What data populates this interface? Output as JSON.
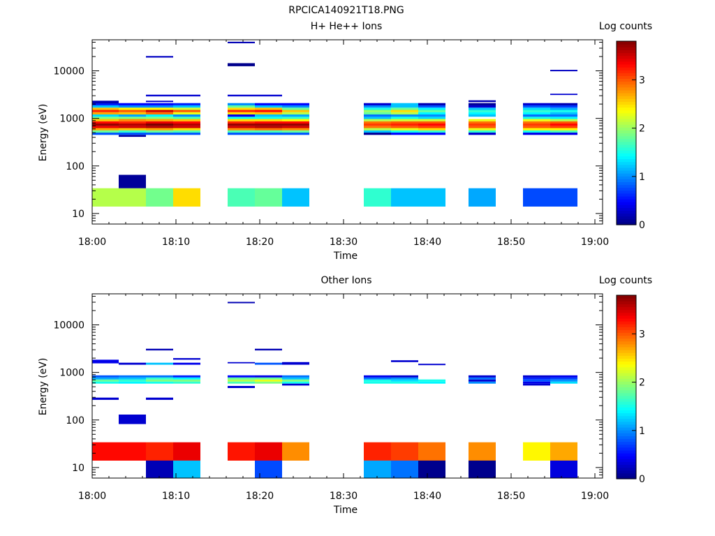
{
  "figure_title": "RPCICA140921T18.PNG",
  "colorbar": {
    "label": "Log counts",
    "range": [
      0,
      3.8
    ],
    "ticks": [
      "0",
      "1",
      "2",
      "3"
    ],
    "colormap": "jet"
  },
  "chart_data": [
    {
      "type": "heatmap",
      "title": "H+ He++ Ions",
      "xlabel": "Time",
      "ylabel": "Energy (eV)",
      "y_scale": "log",
      "xlim": [
        "18:00",
        "19:00"
      ],
      "ylim": [
        6,
        45000
      ],
      "x_ticks": [
        "18:00",
        "18:10",
        "18:20",
        "18:30",
        "18:40",
        "18:50",
        "19:00"
      ],
      "y_ticks": [
        "10",
        "100",
        "1000",
        "10000"
      ],
      "cells": [
        {
          "t0": "18:00:00",
          "t1": "18:03:10",
          "e0": 14,
          "e1": 34,
          "v": 2.1
        },
        {
          "t0": "18:03:10",
          "t1": "18:06:25",
          "e0": 14,
          "e1": 34,
          "v": 2.1
        },
        {
          "t0": "18:06:25",
          "t1": "18:09:40",
          "e0": 14,
          "e1": 34,
          "v": 1.85
        },
        {
          "t0": "18:09:40",
          "t1": "18:12:55",
          "e0": 14,
          "e1": 34,
          "v": 2.5
        },
        {
          "t0": "18:16:10",
          "t1": "18:19:25",
          "e0": 14,
          "e1": 34,
          "v": 1.7
        },
        {
          "t0": "18:19:25",
          "t1": "18:22:40",
          "e0": 14,
          "e1": 34,
          "v": 1.8
        },
        {
          "t0": "18:22:40",
          "t1": "18:25:55",
          "e0": 14,
          "e1": 34,
          "v": 1.2
        },
        {
          "t0": "18:32:25",
          "t1": "18:35:40",
          "e0": 14,
          "e1": 34,
          "v": 1.6
        },
        {
          "t0": "18:35:40",
          "t1": "18:38:55",
          "e0": 14,
          "e1": 34,
          "v": 1.2
        },
        {
          "t0": "18:38:55",
          "t1": "18:42:10",
          "e0": 14,
          "e1": 34,
          "v": 1.2
        },
        {
          "t0": "18:44:55",
          "t1": "18:48:10",
          "e0": 14,
          "e1": 34,
          "v": 1.1
        },
        {
          "t0": "18:51:25",
          "t1": "18:54:40",
          "e0": 14,
          "e1": 34,
          "v": 0.75
        },
        {
          "t0": "18:54:40",
          "t1": "18:57:55",
          "e0": 14,
          "e1": 34,
          "v": 0.75
        },
        {
          "t0": "18:03:10",
          "t1": "18:06:25",
          "e0": 34,
          "e1": 65,
          "v": 0.1
        },
        {
          "t0": "18:03:10",
          "t1": "18:06:25",
          "e0": 410,
          "e1": 450,
          "v": 0.15
        },
        {
          "t0": "18:06:25",
          "t1": "18:09:40",
          "e0": 19000,
          "e1": 20500,
          "v": 0.25
        },
        {
          "t0": "18:16:10",
          "t1": "18:19:25",
          "e0": 38000,
          "e1": 41000,
          "v": 0.2
        },
        {
          "t0": "18:16:10",
          "t1": "18:19:25",
          "e0": 12500,
          "e1": 14500,
          "v": 0.05
        },
        {
          "t0": "18:06:25",
          "t1": "18:09:40",
          "e0": 2900,
          "e1": 3150,
          "v": 0.3
        },
        {
          "t0": "18:09:40",
          "t1": "18:12:55",
          "e0": 2900,
          "e1": 3150,
          "v": 0.3
        },
        {
          "t0": "18:16:10",
          "t1": "18:19:25",
          "e0": 2900,
          "e1": 3150,
          "v": 0.3
        },
        {
          "t0": "18:19:25",
          "t1": "18:22:40",
          "e0": 2900,
          "e1": 3150,
          "v": 0.3
        },
        {
          "t0": "18:06:25",
          "t1": "18:09:40",
          "e0": 2200,
          "e1": 2350,
          "v": 0.3
        },
        {
          "t0": "18:44:55",
          "t1": "18:48:10",
          "e0": 2200,
          "e1": 2400,
          "v": 0.2
        },
        {
          "t0": "18:54:40",
          "t1": "18:57:55",
          "e0": 9800,
          "e1": 10500,
          "v": 0.25
        },
        {
          "t0": "18:54:40",
          "t1": "18:57:55",
          "e0": 3100,
          "e1": 3300,
          "v": 0.3
        },
        {
          "t0": "18:00:00",
          "t1": "18:03:10",
          "e0": 2050,
          "e1": 2350,
          "v": 0.2
        }
      ],
      "spectra_band": {
        "e_range": [
          450,
          2100
        ],
        "columns": [
          {
            "t0": "18:00:00",
            "t1": "18:03:10",
            "levels": [
              0.8,
              1.8,
              2.7,
              3.4,
              3.7,
              3.3,
              2.6,
              1.9,
              1.3,
              2.7,
              3.2,
              2.6,
              1.2,
              0.6
            ]
          },
          {
            "t0": "18:03:10",
            "t1": "18:06:25",
            "levels": [
              0.8,
              1.6,
              2.6,
              3.5,
              3.6,
              3.2,
              2.8,
              1.9,
              1.1,
              2.6,
              3.0,
              2.4,
              1.0,
              0.5
            ]
          },
          {
            "t0": "18:06:25",
            "t1": "18:09:40",
            "levels": [
              0.8,
              1.8,
              2.7,
              3.6,
              3.8,
              3.4,
              2.7,
              1.9,
              1.4,
              2.9,
              3.5,
              2.4,
              1.0,
              0.5
            ]
          },
          {
            "t0": "18:09:40",
            "t1": "18:12:55",
            "levels": [
              0.8,
              1.7,
              2.5,
              3.5,
              3.6,
              3.3,
              2.6,
              1.7,
              1.0,
              2.3,
              3.0,
              2.2,
              1.2,
              0.6
            ]
          },
          {
            "t0": "18:16:10",
            "t1": "18:19:25",
            "levels": [
              0.8,
              1.7,
              2.8,
              3.5,
              3.7,
              3.2,
              2.5,
              1.5,
              0.4,
              2.5,
              3.2,
              2.5,
              1.8,
              1.0
            ]
          },
          {
            "t0": "18:19:25",
            "t1": "18:22:40",
            "levels": [
              0.8,
              1.7,
              2.9,
              3.6,
              3.7,
              3.3,
              2.5,
              1.5,
              1.2,
              2.6,
              3.3,
              2.6,
              1.2,
              0.5
            ]
          },
          {
            "t0": "18:22:40",
            "t1": "18:25:55",
            "levels": [
              0.8,
              1.8,
              2.8,
              3.5,
              3.7,
              3.3,
              2.4,
              1.6,
              1.1,
              2.1,
              2.6,
              1.8,
              1.0,
              0.5
            ]
          },
          {
            "t0": "18:32:25",
            "t1": "18:35:40",
            "levels": [
              0.1,
              1.2,
              2.1,
              2.9,
              3.1,
              2.9,
              2.1,
              1.2,
              0.9,
              1.8,
              2.0,
              1.5,
              1.0,
              0.3
            ]
          },
          {
            "t0": "18:35:40",
            "t1": "18:38:55",
            "levels": [
              0.5,
              1.5,
              2.3,
              3.0,
              3.2,
              3.0,
              2.2,
              1.5,
              1.0,
              2.1,
              2.5,
              1.8,
              1.2,
              1.2
            ]
          },
          {
            "t0": "18:38:55",
            "t1": "18:42:10",
            "levels": [
              0.5,
              1.6,
              2.5,
              3.1,
              3.3,
              3.0,
              2.2,
              1.3,
              1.0,
              1.4,
              1.8,
              1.4,
              0.8,
              0.2
            ]
          },
          {
            "t0": "18:44:55",
            "t1": "18:48:10",
            "levels": [
              0.3,
              1.6,
              2.3,
              3.0,
              3.1,
              2.9,
              2.3,
              null,
              1.2,
              1.4,
              1.6,
              1.2,
              0.3,
              0.1
            ]
          },
          {
            "t0": "18:51:25",
            "t1": "18:54:40",
            "levels": [
              0.4,
              1.5,
              2.4,
              3.0,
              3.1,
              2.9,
              2.3,
              1.5,
              0.9,
              1.4,
              1.6,
              1.3,
              0.8,
              0.3
            ]
          },
          {
            "t0": "18:54:40",
            "t1": "18:57:55",
            "levels": [
              0.4,
              1.7,
              2.4,
              3.1,
              3.3,
              3.0,
              2.1,
              1.4,
              0.9,
              1.2,
              1.5,
              1.1,
              0.7,
              0.2
            ]
          }
        ]
      }
    },
    {
      "type": "heatmap",
      "title": "Other Ions",
      "xlabel": "Time",
      "ylabel": "Energy (eV)",
      "y_scale": "log",
      "xlim": [
        "18:00",
        "19:00"
      ],
      "ylim": [
        6,
        45000
      ],
      "x_ticks": [
        "18:00",
        "18:10",
        "18:20",
        "18:30",
        "18:40",
        "18:50",
        "19:00"
      ],
      "y_ticks": [
        "10",
        "100",
        "1000",
        "10000"
      ],
      "cells": [
        {
          "t0": "18:00:00",
          "t1": "18:03:10",
          "e0": 14,
          "e1": 34,
          "v": 3.3
        },
        {
          "t0": "18:03:10",
          "t1": "18:06:25",
          "e0": 14,
          "e1": 34,
          "v": 3.3
        },
        {
          "t0": "18:06:25",
          "t1": "18:09:40",
          "e0": 14,
          "e1": 34,
          "v": 3.2
        },
        {
          "t0": "18:09:40",
          "t1": "18:12:55",
          "e0": 14,
          "e1": 34,
          "v": 3.4
        },
        {
          "t0": "18:16:10",
          "t1": "18:19:25",
          "e0": 14,
          "e1": 34,
          "v": 3.25
        },
        {
          "t0": "18:19:25",
          "t1": "18:22:40",
          "e0": 14,
          "e1": 34,
          "v": 3.4
        },
        {
          "t0": "18:22:40",
          "t1": "18:25:55",
          "e0": 14,
          "e1": 34,
          "v": 2.8
        },
        {
          "t0": "18:32:25",
          "t1": "18:35:40",
          "e0": 14,
          "e1": 34,
          "v": 3.2
        },
        {
          "t0": "18:35:40",
          "t1": "18:38:55",
          "e0": 14,
          "e1": 34,
          "v": 3.1
        },
        {
          "t0": "18:38:55",
          "t1": "18:42:10",
          "e0": 14,
          "e1": 34,
          "v": 2.9
        },
        {
          "t0": "18:44:55",
          "t1": "18:48:10",
          "e0": 14,
          "e1": 34,
          "v": 2.8
        },
        {
          "t0": "18:51:25",
          "t1": "18:54:40",
          "e0": 14,
          "e1": 34,
          "v": 2.4
        },
        {
          "t0": "18:54:40",
          "t1": "18:57:55",
          "e0": 14,
          "e1": 34,
          "v": 2.7
        },
        {
          "t0": "18:06:25",
          "t1": "18:09:40",
          "e0": 6,
          "e1": 14,
          "v": 0.2
        },
        {
          "t0": "18:09:40",
          "t1": "18:12:55",
          "e0": 6,
          "e1": 14,
          "v": 1.2
        },
        {
          "t0": "18:19:25",
          "t1": "18:22:40",
          "e0": 6,
          "e1": 14,
          "v": 0.75
        },
        {
          "t0": "18:32:25",
          "t1": "18:35:40",
          "e0": 6,
          "e1": 14,
          "v": 1.1
        },
        {
          "t0": "18:35:40",
          "t1": "18:38:55",
          "e0": 6,
          "e1": 14,
          "v": 0.9
        },
        {
          "t0": "18:38:55",
          "t1": "18:42:10",
          "e0": 6,
          "e1": 14,
          "v": 0.05
        },
        {
          "t0": "18:44:55",
          "t1": "18:48:10",
          "e0": 6,
          "e1": 14,
          "v": 0.05
        },
        {
          "t0": "18:54:40",
          "t1": "18:57:55",
          "e0": 6,
          "e1": 14,
          "v": 0.35
        },
        {
          "t0": "18:03:10",
          "t1": "18:06:25",
          "e0": 82,
          "e1": 130,
          "v": 0.3
        },
        {
          "t0": "18:00:00",
          "t1": "18:03:10",
          "e0": 265,
          "e1": 295,
          "v": 0.3
        },
        {
          "t0": "18:06:25",
          "t1": "18:09:40",
          "e0": 265,
          "e1": 295,
          "v": 0.3
        },
        {
          "t0": "18:16:10",
          "t1": "18:19:25",
          "e0": 28500,
          "e1": 30500,
          "v": 0.2
        },
        {
          "t0": "18:06:25",
          "t1": "18:09:40",
          "e0": 2900,
          "e1": 3150,
          "v": 0.2
        },
        {
          "t0": "18:19:25",
          "t1": "18:22:40",
          "e0": 2900,
          "e1": 3150,
          "v": 0.2
        },
        {
          "t0": "18:00:00",
          "t1": "18:03:10",
          "e0": 1550,
          "e1": 1850,
          "v": 0.4
        },
        {
          "t0": "18:03:10",
          "t1": "18:06:25",
          "e0": 1450,
          "e1": 1600,
          "v": 0.3
        },
        {
          "t0": "18:06:25",
          "t1": "18:09:40",
          "e0": 1450,
          "e1": 1600,
          "v": 1.2
        },
        {
          "t0": "18:09:40",
          "t1": "18:12:55",
          "e0": 1450,
          "e1": 1600,
          "v": 0.4
        },
        {
          "t0": "18:09:40",
          "t1": "18:12:55",
          "e0": 1850,
          "e1": 2000,
          "v": 0.3
        },
        {
          "t0": "18:16:10",
          "t1": "18:19:25",
          "e0": 1550,
          "e1": 1650,
          "v": 0.3
        },
        {
          "t0": "18:19:25",
          "t1": "18:22:40",
          "e0": 1450,
          "e1": 1600,
          "v": 0.8
        },
        {
          "t0": "18:22:40",
          "t1": "18:25:55",
          "e0": 1450,
          "e1": 1650,
          "v": 0.3
        },
        {
          "t0": "18:35:40",
          "t1": "18:38:55",
          "e0": 1650,
          "e1": 1800,
          "v": 0.3
        },
        {
          "t0": "18:38:55",
          "t1": "18:42:10",
          "e0": 1420,
          "e1": 1520,
          "v": 0.3
        },
        {
          "t0": "18:16:10",
          "t1": "18:19:25",
          "e0": 470,
          "e1": 520,
          "v": 0.3
        },
        {
          "t0": "18:22:40",
          "t1": "18:25:55",
          "e0": 530,
          "e1": 580,
          "v": 0.3
        },
        {
          "t0": "18:51:25",
          "t1": "18:54:40",
          "e0": 530,
          "e1": 580,
          "v": 0.3
        }
      ],
      "spectra_band": {
        "e_range": [
          580,
          870
        ],
        "columns": [
          {
            "t0": "18:00:00",
            "t1": "18:03:10",
            "levels": [
              1.5,
              1.8,
              1.1,
              0.8
            ]
          },
          {
            "t0": "18:03:10",
            "t1": "18:06:25",
            "levels": [
              1.4,
              1.6,
              1.2,
              0.9
            ]
          },
          {
            "t0": "18:06:25",
            "t1": "18:09:40",
            "levels": [
              1.5,
              1.9,
              1.6,
              0.9
            ]
          },
          {
            "t0": "18:09:40",
            "t1": "18:12:55",
            "levels": [
              1.6,
              1.9,
              1.4,
              0.6
            ]
          },
          {
            "t0": "18:16:10",
            "t1": "18:19:25",
            "levels": [
              1.7,
              2.1,
              1.8,
              0.5
            ]
          },
          {
            "t0": "18:19:25",
            "t1": "18:22:40",
            "levels": [
              1.9,
              2.3,
              1.8,
              0.4
            ]
          },
          {
            "t0": "18:22:40",
            "t1": "18:25:55",
            "levels": [
              1.5,
              1.9,
              1.2,
              0.9
            ]
          },
          {
            "t0": "18:32:25",
            "t1": "18:35:40",
            "levels": [
              1.5,
              1.5,
              0.9,
              0.4
            ]
          },
          {
            "t0": "18:35:40",
            "t1": "18:38:55",
            "levels": [
              1.5,
              1.3,
              1.0,
              0.3
            ]
          },
          {
            "t0": "18:38:55",
            "t1": "18:42:10",
            "levels": [
              1.4,
              1.5,
              null,
              null
            ]
          },
          {
            "t0": "18:44:55",
            "t1": "18:48:10",
            "levels": [
              1.0,
              0.3,
              0.9,
              0.3
            ]
          },
          {
            "t0": "18:51:25",
            "t1": "18:54:40",
            "levels": [
              0.4,
              0.8,
              0.6,
              0.3
            ]
          },
          {
            "t0": "18:54:40",
            "t1": "18:57:55",
            "levels": [
              1.3,
              1.0,
              0.7,
              0.4
            ]
          }
        ]
      }
    }
  ]
}
